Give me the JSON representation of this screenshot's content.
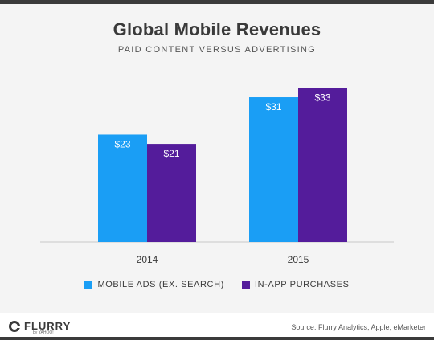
{
  "chart_data": {
    "type": "bar",
    "title": "Global Mobile Revenues",
    "subtitle": "PAID CONTENT VERSUS ADVERTISING",
    "categories": [
      "2014",
      "2015"
    ],
    "series": [
      {
        "name": "MOBILE ADS (EX. SEARCH)",
        "values": [
          23,
          31
        ],
        "labels": [
          "$23",
          "$31"
        ],
        "color": "#1a9ef5"
      },
      {
        "name": "IN-APP PURCHASES",
        "values": [
          21,
          33
        ],
        "labels": [
          "$21",
          "$33"
        ],
        "color": "#541c9b"
      }
    ],
    "ylim": [
      0,
      36
    ],
    "grid": false,
    "legend_position": "bottom"
  },
  "footer": {
    "brand": "FLURRY",
    "brand_sub": "by YAHOO!",
    "source": "Source: Flurry Analytics, Apple, eMarketer"
  },
  "colors": {
    "frame": "#3b3b3b",
    "background": "#f4f4f4",
    "text": "#3a3a3a"
  }
}
